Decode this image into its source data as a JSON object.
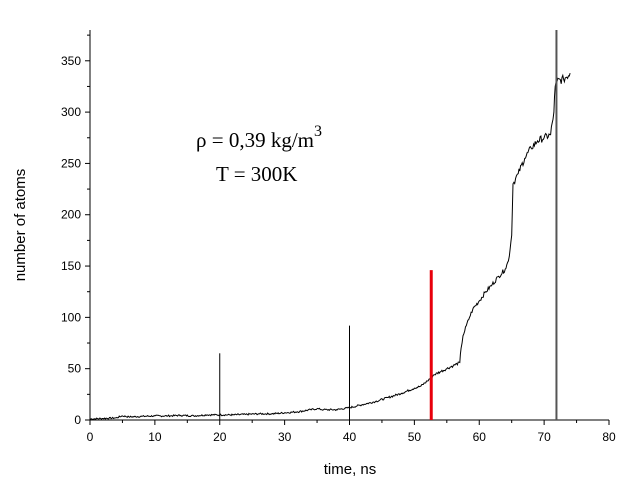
{
  "chart_data": {
    "type": "line",
    "title": "",
    "xlabel": "time, ns",
    "ylabel": "number of atoms",
    "xlim": [
      0,
      80
    ],
    "ylim": [
      0,
      380
    ],
    "xticks": [
      0,
      10,
      20,
      30,
      40,
      50,
      60,
      70,
      80
    ],
    "yticks": [
      0,
      50,
      100,
      150,
      200,
      250,
      300,
      350
    ],
    "grid": false,
    "annotations": {
      "density_prefix": "ρ = 0,39 kg/m",
      "density_exp": "3",
      "temperature": "T = 300K"
    },
    "series": [
      {
        "color": "#000000",
        "points": [
          [
            0,
            1
          ],
          [
            2,
            1.5
          ],
          [
            4,
            2
          ],
          [
            5,
            4
          ],
          [
            6,
            3
          ],
          [
            8,
            3.5
          ],
          [
            10,
            4
          ],
          [
            12,
            4
          ],
          [
            14,
            4.5
          ],
          [
            16,
            4
          ],
          [
            18,
            5
          ],
          [
            20,
            5
          ],
          [
            22,
            5
          ],
          [
            24,
            5.5
          ],
          [
            26,
            6
          ],
          [
            28,
            6
          ],
          [
            30,
            7
          ],
          [
            32,
            8
          ],
          [
            34,
            10
          ],
          [
            35,
            11
          ],
          [
            36,
            10
          ],
          [
            38,
            10
          ],
          [
            40,
            12
          ],
          [
            42,
            15
          ],
          [
            44,
            18
          ],
          [
            46,
            22
          ],
          [
            48,
            26
          ],
          [
            50,
            31
          ],
          [
            51,
            33
          ],
          [
            52,
            38
          ],
          [
            53,
            44
          ],
          [
            54,
            47
          ],
          [
            55,
            50
          ],
          [
            56,
            53
          ],
          [
            57,
            56
          ],
          [
            57.2,
            70
          ],
          [
            57.5,
            82
          ],
          [
            58,
            92
          ],
          [
            58.5,
            100
          ],
          [
            59,
            108
          ],
          [
            60,
            116
          ],
          [
            61,
            125
          ],
          [
            62,
            132
          ],
          [
            63,
            140
          ],
          [
            64,
            147
          ],
          [
            64.5,
            155
          ],
          [
            65,
            180
          ],
          [
            65.2,
            230
          ],
          [
            66,
            240
          ],
          [
            67,
            255
          ],
          [
            68,
            265
          ],
          [
            69,
            272
          ],
          [
            70,
            275
          ],
          [
            71,
            278
          ],
          [
            71.5,
            300
          ],
          [
            71.7,
            325
          ],
          [
            72,
            330
          ],
          [
            73,
            332
          ],
          [
            74,
            338
          ]
        ]
      }
    ],
    "vertical_markers": [
      {
        "x": 20,
        "y_top": 65,
        "color": "#000000"
      },
      {
        "x": 40,
        "y_top": 92,
        "color": "#000000"
      },
      {
        "x": 52.6,
        "y_top": 146,
        "color": "#e8000b"
      },
      {
        "x": 71.9,
        "y_top": 380,
        "color": "#555555"
      }
    ]
  }
}
